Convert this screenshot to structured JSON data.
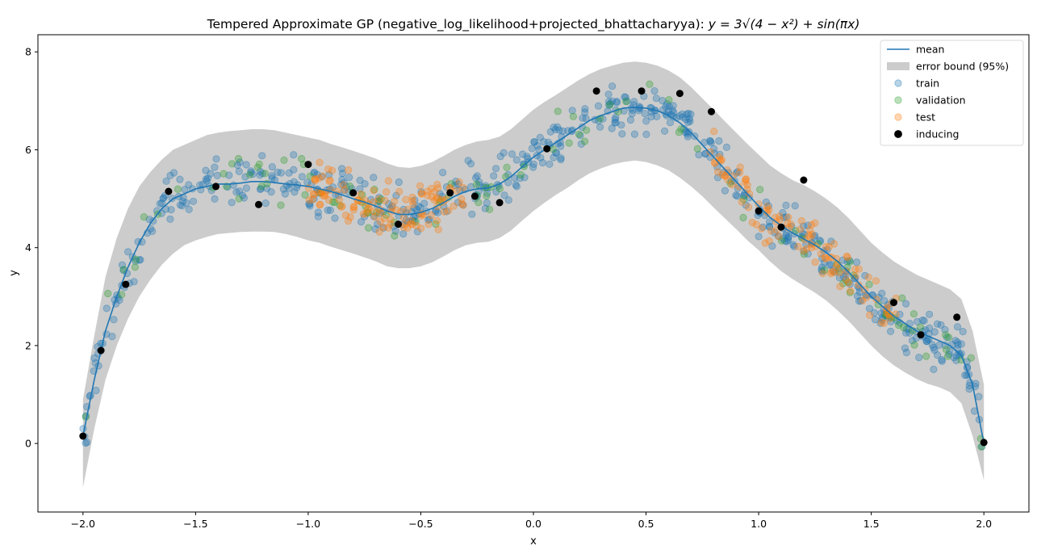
{
  "chart_data": {
    "type": "scatter",
    "title_prefix": "Tempered Approximate GP (negative_log_likelihood+projected_bhattacharyya): ",
    "title_formula": "y = 3√(4 − x²) + sin(πx)",
    "xlabel": "x",
    "ylabel": "y",
    "xlim": [
      -2.2,
      2.2
    ],
    "ylim": [
      -1.4,
      8.35
    ],
    "xticks": [
      -2.0,
      -1.5,
      -1.0,
      -0.5,
      0.0,
      0.5,
      1.0,
      1.5,
      2.0
    ],
    "xtick_labels": [
      "−2.0",
      "−1.5",
      "−1.0",
      "−0.5",
      "0.0",
      "0.5",
      "1.0",
      "1.5",
      "2.0"
    ],
    "yticks": [
      0,
      2,
      4,
      6,
      8
    ],
    "ytick_labels": [
      "0",
      "2",
      "4",
      "6",
      "8"
    ],
    "grid": false,
    "legend": {
      "position": "top-right",
      "entries": [
        {
          "label": "mean",
          "kind": "line",
          "color": "#1f77b4"
        },
        {
          "label": "error bound (95%)",
          "kind": "band",
          "color": "#cccccc"
        },
        {
          "label": "train",
          "kind": "point",
          "color": "#1f77b4"
        },
        {
          "label": "validation",
          "kind": "point",
          "color": "#2ca02c"
        },
        {
          "label": "test",
          "kind": "point",
          "color": "#ff7f0e"
        },
        {
          "label": "inducing",
          "kind": "point",
          "color": "#000000"
        }
      ]
    },
    "colors": {
      "mean": "#1f77b4",
      "band": "#cccccc",
      "train": "#1f77b4",
      "validation": "#2ca02c",
      "test": "#ff7f0e",
      "inducing": "#000000"
    },
    "mean_curve": {
      "x": [
        -2.0,
        -1.95,
        -1.9,
        -1.85,
        -1.8,
        -1.75,
        -1.7,
        -1.65,
        -1.6,
        -1.55,
        -1.5,
        -1.45,
        -1.4,
        -1.35,
        -1.3,
        -1.25,
        -1.2,
        -1.15,
        -1.1,
        -1.05,
        -1.0,
        -0.95,
        -0.9,
        -0.85,
        -0.8,
        -0.75,
        -0.7,
        -0.65,
        -0.6,
        -0.55,
        -0.5,
        -0.45,
        -0.4,
        -0.35,
        -0.3,
        -0.25,
        -0.2,
        -0.15,
        -0.1,
        -0.05,
        0.0,
        0.05,
        0.1,
        0.15,
        0.2,
        0.25,
        0.3,
        0.35,
        0.4,
        0.45,
        0.5,
        0.55,
        0.6,
        0.65,
        0.7,
        0.75,
        0.8,
        0.85,
        0.9,
        0.95,
        1.0,
        1.05,
        1.1,
        1.15,
        1.2,
        1.25,
        1.3,
        1.35,
        1.4,
        1.45,
        1.5,
        1.55,
        1.6,
        1.65,
        1.7,
        1.75,
        1.8,
        1.85,
        1.9,
        1.95,
        2.0
      ],
      "y": [
        0.15,
        1.3,
        2.3,
        3.0,
        3.6,
        4.1,
        4.5,
        4.8,
        5.0,
        5.1,
        5.2,
        5.25,
        5.3,
        5.3,
        5.32,
        5.35,
        5.35,
        5.33,
        5.3,
        5.28,
        5.25,
        5.2,
        5.15,
        5.08,
        5.0,
        4.93,
        4.85,
        4.75,
        4.68,
        4.68,
        4.72,
        4.8,
        4.92,
        5.05,
        5.15,
        5.2,
        5.22,
        5.3,
        5.45,
        5.65,
        5.85,
        6.0,
        6.15,
        6.3,
        6.45,
        6.6,
        6.7,
        6.78,
        6.85,
        6.87,
        6.85,
        6.8,
        6.7,
        6.55,
        6.35,
        6.1,
        5.85,
        5.6,
        5.35,
        5.1,
        4.85,
        4.62,
        4.45,
        4.3,
        4.18,
        4.05,
        3.9,
        3.72,
        3.5,
        3.25,
        3.0,
        2.8,
        2.6,
        2.45,
        2.3,
        2.2,
        2.1,
        2.0,
        1.8,
        1.2,
        0.0
      ]
    },
    "error_band": {
      "upper": [
        0.9,
        2.2,
        3.4,
        4.2,
        4.8,
        5.25,
        5.55,
        5.8,
        6.0,
        6.1,
        6.2,
        6.3,
        6.35,
        6.38,
        6.4,
        6.42,
        6.42,
        6.4,
        6.35,
        6.3,
        6.25,
        6.2,
        6.12,
        6.05,
        5.98,
        5.9,
        5.82,
        5.72,
        5.65,
        5.63,
        5.67,
        5.75,
        5.87,
        6.0,
        6.1,
        6.17,
        6.2,
        6.27,
        6.42,
        6.62,
        6.82,
        6.98,
        7.12,
        7.27,
        7.42,
        7.55,
        7.65,
        7.72,
        7.78,
        7.8,
        7.78,
        7.72,
        7.62,
        7.48,
        7.28,
        7.05,
        6.82,
        6.58,
        6.35,
        6.12,
        5.9,
        5.68,
        5.52,
        5.38,
        5.28,
        5.15,
        5.0,
        4.82,
        4.6,
        4.35,
        4.1,
        3.9,
        3.72,
        3.58,
        3.45,
        3.35,
        3.25,
        3.15,
        2.95,
        2.3,
        1.2
      ],
      "lower": [
        -0.9,
        0.3,
        1.3,
        2.0,
        2.55,
        3.0,
        3.35,
        3.65,
        3.88,
        4.05,
        4.15,
        4.22,
        4.28,
        4.3,
        4.32,
        4.33,
        4.33,
        4.32,
        4.28,
        4.22,
        4.15,
        4.1,
        4.02,
        3.95,
        3.88,
        3.8,
        3.72,
        3.62,
        3.58,
        3.58,
        3.62,
        3.7,
        3.82,
        3.95,
        4.05,
        4.1,
        4.12,
        4.2,
        4.35,
        4.55,
        4.75,
        4.92,
        5.08,
        5.22,
        5.38,
        5.52,
        5.62,
        5.7,
        5.75,
        5.78,
        5.75,
        5.68,
        5.58,
        5.43,
        5.25,
        5.05,
        4.82,
        4.6,
        4.38,
        4.15,
        3.95,
        3.72,
        3.52,
        3.36,
        3.22,
        3.08,
        2.92,
        2.72,
        2.5,
        2.25,
        2.0,
        1.78,
        1.6,
        1.45,
        1.32,
        1.22,
        1.15,
        1.05,
        0.82,
        0.15,
        -0.75
      ]
    },
    "inducing_points": {
      "x": [
        -2.0,
        -1.92,
        -1.81,
        -1.62,
        -1.41,
        -1.22,
        -1.0,
        -0.8,
        -0.6,
        -0.37,
        -0.26,
        -0.15,
        0.06,
        0.28,
        0.48,
        0.65,
        0.79,
        1.0,
        1.1,
        1.2,
        1.6,
        1.72,
        1.88,
        2.0
      ],
      "y": [
        0.15,
        1.9,
        3.25,
        5.15,
        5.25,
        4.88,
        5.7,
        5.12,
        4.48,
        5.12,
        5.05,
        4.92,
        6.02,
        7.2,
        7.2,
        7.15,
        6.78,
        4.75,
        4.42,
        5.38,
        2.88,
        2.22,
        2.58,
        0.02
      ]
    },
    "scatter_series": [
      {
        "name": "train",
        "x_range": [
          -2.0,
          2.0
        ],
        "count": 600,
        "noise": 0.42
      },
      {
        "name": "validation",
        "x_range": [
          -2.0,
          2.0
        ],
        "count": 120,
        "noise": 0.42
      },
      {
        "name": "test",
        "x_ranges": [
          [
            -1.0,
            -0.3
          ],
          [
            0.78,
            1.62
          ]
        ],
        "count": 230,
        "noise": 0.42
      }
    ]
  }
}
